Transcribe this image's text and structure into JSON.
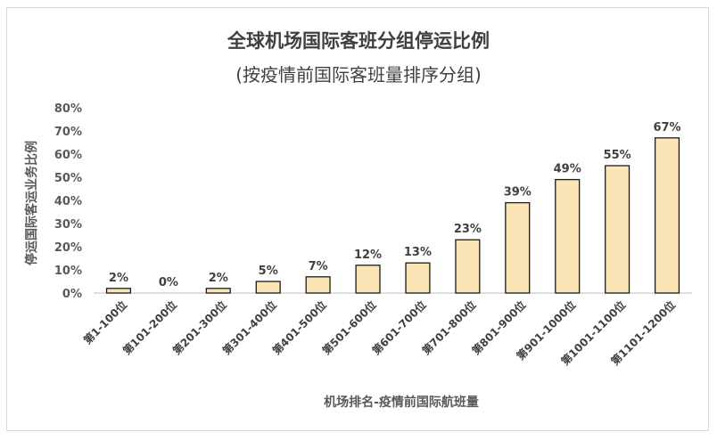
{
  "chart_data": {
    "type": "bar",
    "title": "全球机场国际客班分组停运比例",
    "subtitle": "(按疫情前国际客班量排序分组)",
    "xlabel": "机场排名-疫情前国际航班量",
    "ylabel": "停运国际客运业务比例",
    "categories": [
      "第1-100位",
      "第101-200位",
      "第201-300位",
      "第301-400位",
      "第401-500位",
      "第501-600位",
      "第601-700位",
      "第701-800位",
      "第801-900位",
      "第901-1000位",
      "第1001-1100位",
      "第1101-1200位"
    ],
    "values": [
      2,
      0,
      2,
      5,
      7,
      12,
      13,
      23,
      39,
      49,
      55,
      67
    ],
    "value_labels": [
      "2%",
      "0%",
      "2%",
      "5%",
      "7%",
      "12%",
      "13%",
      "23%",
      "39%",
      "49%",
      "55%",
      "67%"
    ],
    "ylim": [
      0,
      80
    ],
    "yticks": [
      0,
      10,
      20,
      30,
      40,
      50,
      60,
      70,
      80
    ],
    "ytick_labels": [
      "0%",
      "10%",
      "20%",
      "30%",
      "40%",
      "50%",
      "60%",
      "70%",
      "80%"
    ],
    "bar_color": "#fbe5b6",
    "bar_edge_color": "#1a1a1a",
    "grid": false,
    "legend": "none"
  }
}
